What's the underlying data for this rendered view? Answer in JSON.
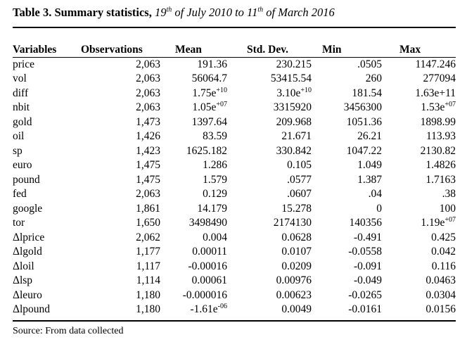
{
  "caption": {
    "label": "Table 3. Summary statistics,",
    "period_day_start": "19",
    "period_sup_start": "th",
    "period_mid": " of July 2010 to 11",
    "period_sup_end": "th",
    "period_end": " of March 2016"
  },
  "headers": [
    "Variables",
    "Observations",
    "Mean",
    "Std. Dev.",
    "Min",
    "Max"
  ],
  "rows": [
    {
      "var": "price",
      "obs": "2,063",
      "mean": "191.36",
      "sd": "230.215",
      "min": ".0505",
      "max": "1147.246"
    },
    {
      "var": "vol",
      "obs": "2,063",
      "mean": "56064.7",
      "sd": "53415.54",
      "min": "260",
      "max": "277094"
    },
    {
      "var": "diff",
      "obs": "2,063",
      "mean": "1.75e",
      "mean_exp": "+10",
      "sd": "3.10e",
      "sd_exp": "+10",
      "min": "181.54",
      "max": "1.63e+11"
    },
    {
      "var": "nbit",
      "obs": "2,063",
      "mean": "1.05e",
      "mean_exp": "+07",
      "sd": "3315920",
      "min": "3456300",
      "max": "1.53e",
      "max_exp": "+07"
    },
    {
      "var": "gold",
      "obs": "1,473",
      "mean": "1397.64",
      "sd": "209.968",
      "min": "1051.36",
      "max": "1898.99"
    },
    {
      "var": "oil",
      "obs": "1,426",
      "mean": "83.59",
      "sd": "21.671",
      "min": "26.21",
      "max": "113.93"
    },
    {
      "var": "sp",
      "obs": "1,423",
      "mean": "1625.182",
      "sd": "330.842",
      "min": "1047.22",
      "max": "2130.82"
    },
    {
      "var": "euro",
      "obs": "1,475",
      "mean": "1.286",
      "sd": "0.105",
      "min": "1.049",
      "max": "1.4826"
    },
    {
      "var": "pound",
      "obs": "1,475",
      "mean": "1.579",
      "sd": ".0577",
      "min": "1.387",
      "max": "1.7163"
    },
    {
      "var": "fed",
      "obs": "2,063",
      "mean": "0.129",
      "sd": ".0607",
      "min": ".04",
      "max": ".38"
    },
    {
      "var": "google",
      "obs": "1,861",
      "mean": "14.179",
      "sd": "15.278",
      "min": "0",
      "max": "100"
    },
    {
      "var": "tor",
      "obs": "1,650",
      "mean": "3498490",
      "sd": "2174130",
      "min": "140356",
      "max": "1.19e",
      "max_exp": "+07"
    },
    {
      "var": "Δlprice",
      "obs": "2,062",
      "mean": "0.004",
      "sd": "0.0628",
      "min": "-0.491",
      "max": "0.425"
    },
    {
      "var": "Δlgold",
      "obs": "1,177",
      "mean": "0.00011",
      "sd": "0.0107",
      "min": "-0.0558",
      "max": "0.042"
    },
    {
      "var": "Δloil",
      "obs": "1,117",
      "mean": "-0.00016",
      "sd": "0.0209",
      "min": "-0.091",
      "max": "0.116"
    },
    {
      "var": "Δlsp",
      "obs": "1,114",
      "mean": "0.00061",
      "sd": "0.00976",
      "min": "-0.049",
      "max": "0.0463"
    },
    {
      "var": "Δleuro",
      "obs": "1,180",
      "mean": "-0.000016",
      "sd": "0.00623",
      "min": "-0.0265",
      "max": "0.0304"
    },
    {
      "var": "Δlpound",
      "obs": "1,180",
      "mean": "-1.61e",
      "mean_exp": "-06",
      "sd": "0.0049",
      "min": "-0.0161",
      "max": "0.0156"
    }
  ],
  "source": "Source: From data collected"
}
